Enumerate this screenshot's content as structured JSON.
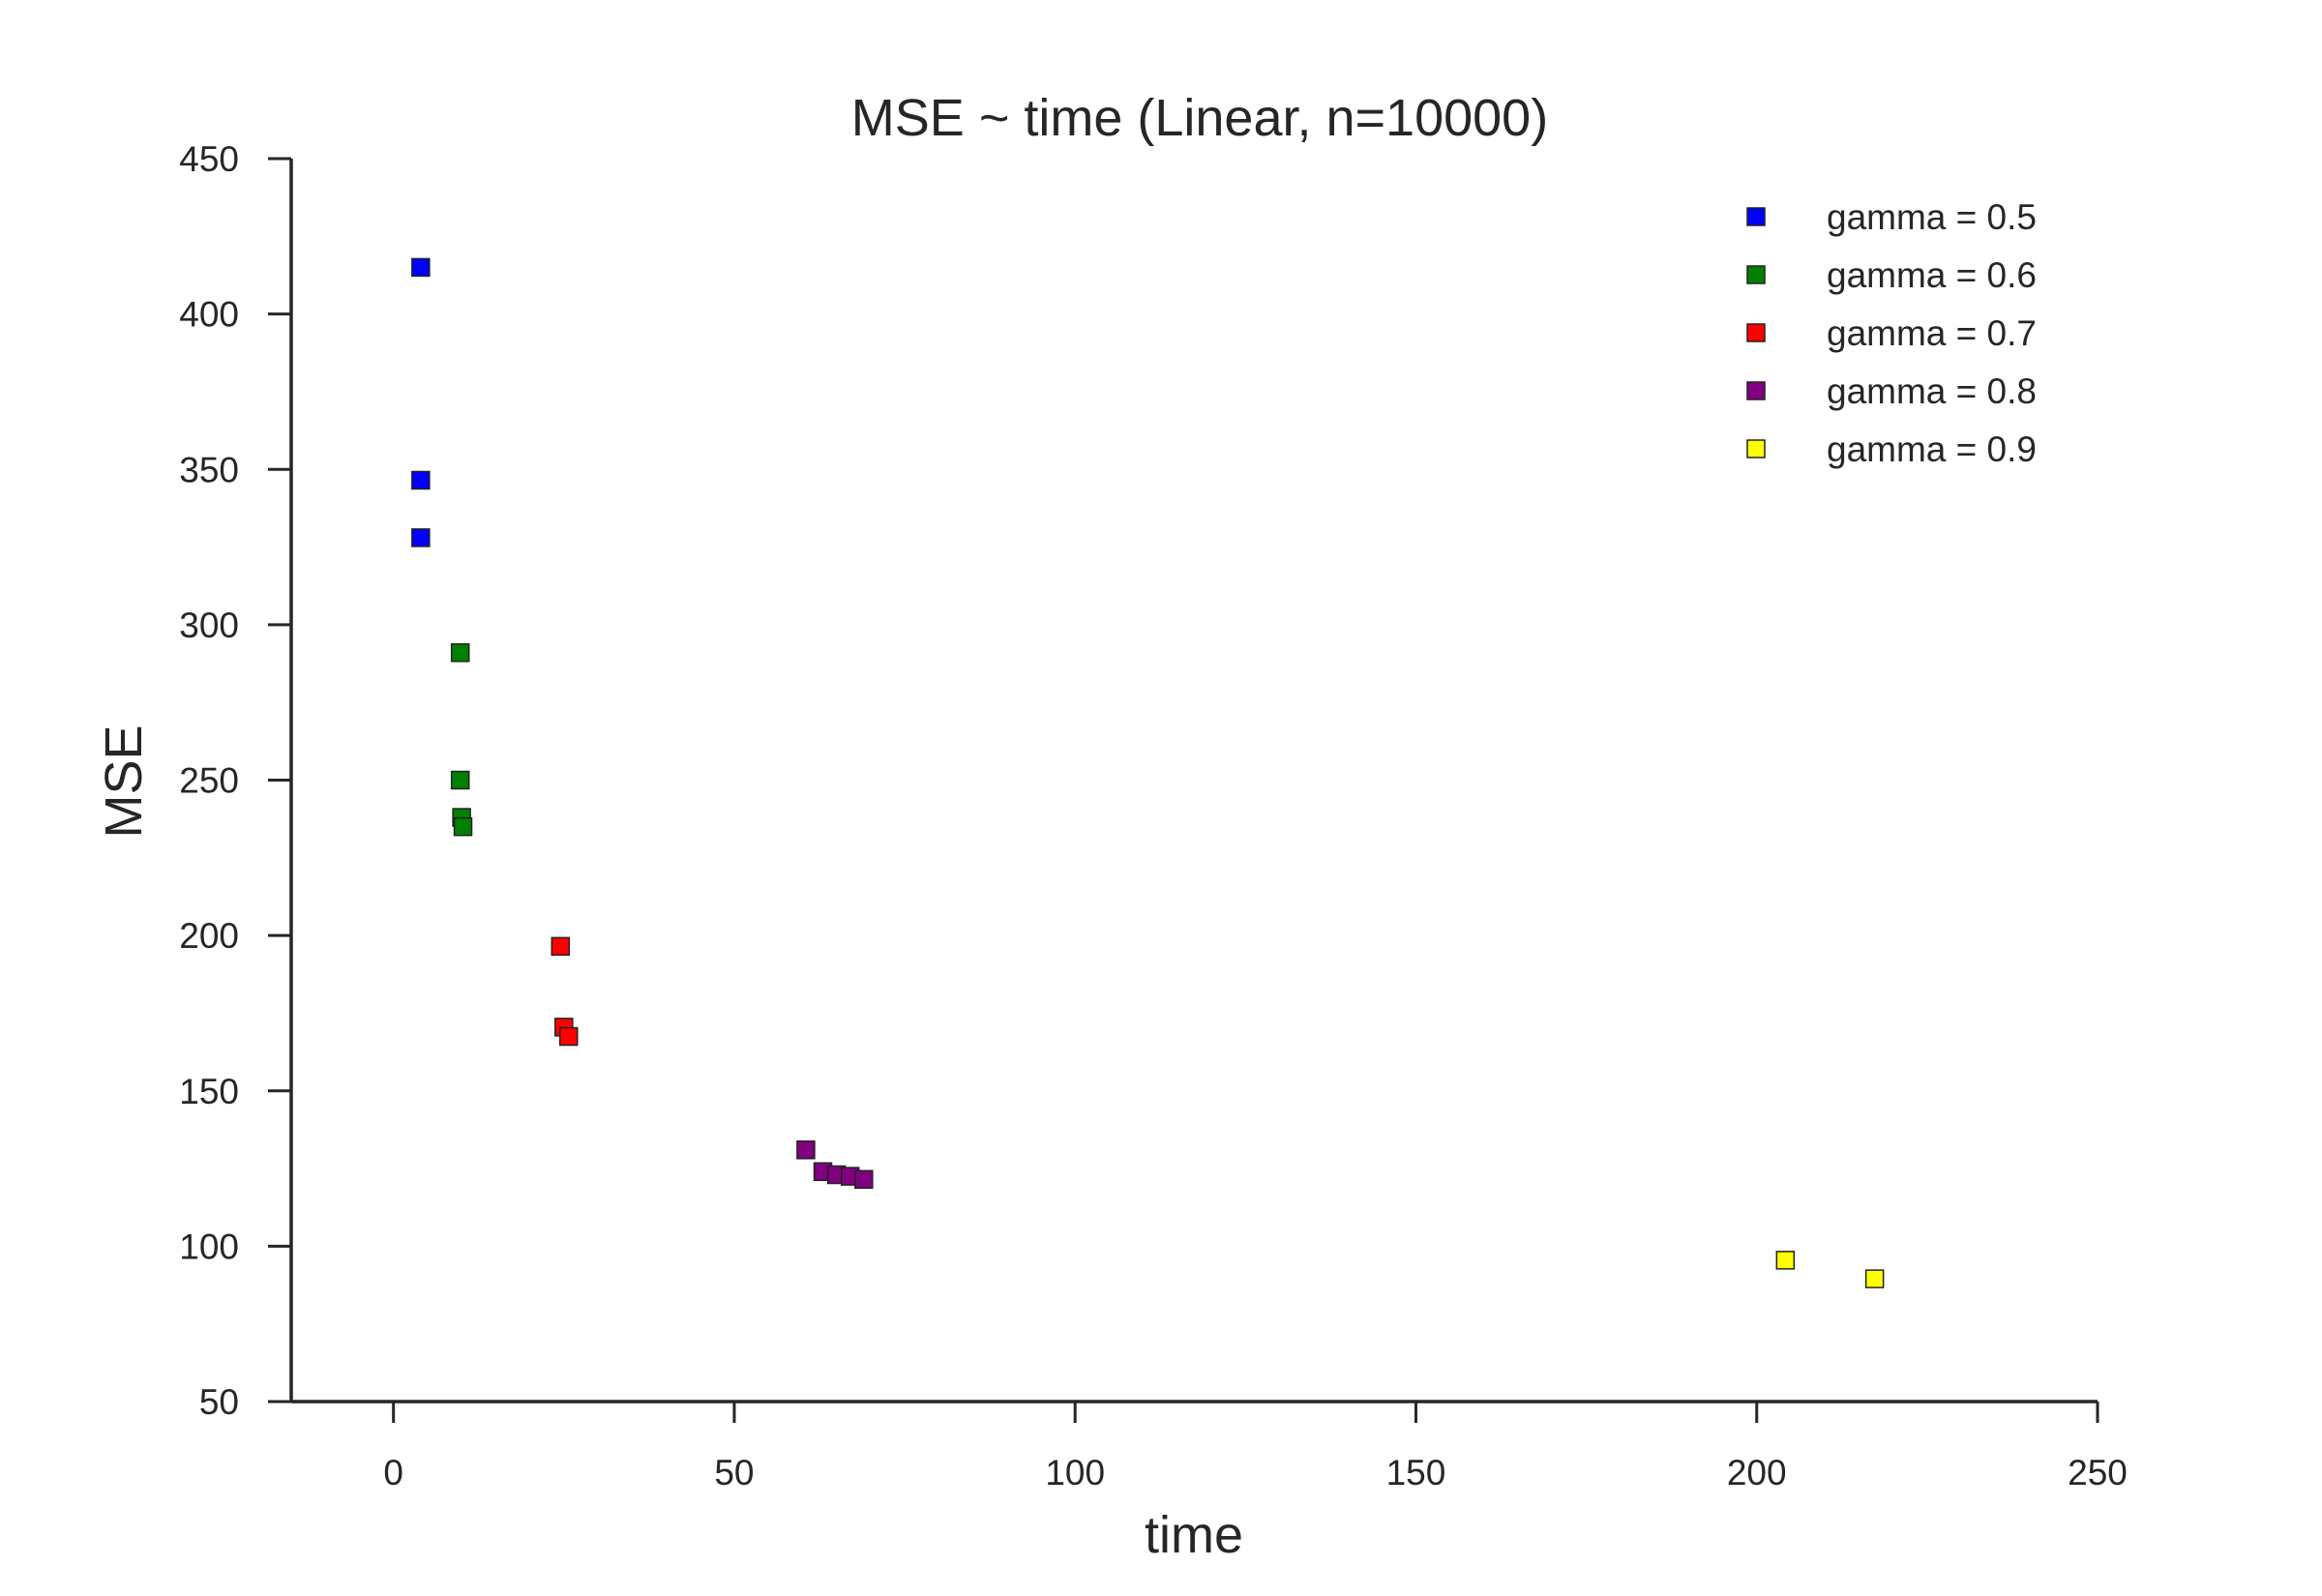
{
  "chart_data": {
    "type": "scatter",
    "title": "MSE ~ time (Linear, n=10000)",
    "xlabel": "time",
    "ylabel": "MSE",
    "xlim": [
      -15,
      250
    ],
    "ylim": [
      50,
      450
    ],
    "xticks": [
      0,
      50,
      100,
      150,
      200,
      250
    ],
    "yticks": [
      50,
      100,
      150,
      200,
      250,
      300,
      350,
      400,
      450
    ],
    "grid": false,
    "legend_position": "top-right",
    "marker": "square",
    "series": [
      {
        "name": "gamma = 0.5",
        "color": "#0000ff",
        "points": [
          [
            4,
            415
          ],
          [
            4,
            346.5
          ],
          [
            4,
            328
          ]
        ]
      },
      {
        "name": "gamma = 0.6",
        "color": "#008000",
        "points": [
          [
            9.8,
            291
          ],
          [
            9.8,
            250
          ],
          [
            10,
            238
          ],
          [
            10.2,
            235
          ]
        ]
      },
      {
        "name": "gamma = 0.7",
        "color": "#ff0000",
        "points": [
          [
            24.5,
            196.5
          ],
          [
            25,
            170.5
          ],
          [
            25.7,
            167.5
          ]
        ]
      },
      {
        "name": "gamma = 0.8",
        "color": "#800080",
        "points": [
          [
            60.5,
            131
          ],
          [
            63,
            124
          ],
          [
            65,
            123
          ],
          [
            67,
            122.5
          ],
          [
            69,
            121.5
          ]
        ]
      },
      {
        "name": "gamma = 0.9",
        "color": "#ffff00",
        "points": [
          [
            204.2,
            95.5
          ],
          [
            217.3,
            89.5
          ]
        ]
      }
    ]
  }
}
